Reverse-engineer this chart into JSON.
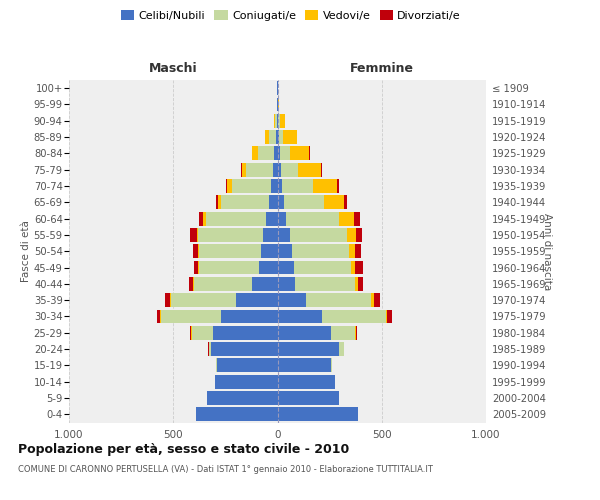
{
  "age_groups": [
    "0-4",
    "5-9",
    "10-14",
    "15-19",
    "20-24",
    "25-29",
    "30-34",
    "35-39",
    "40-44",
    "45-49",
    "50-54",
    "55-59",
    "60-64",
    "65-69",
    "70-74",
    "75-79",
    "80-84",
    "85-89",
    "90-94",
    "95-99",
    "100+"
  ],
  "birth_years": [
    "2005-2009",
    "2000-2004",
    "1995-1999",
    "1990-1994",
    "1985-1989",
    "1980-1984",
    "1975-1979",
    "1970-1974",
    "1965-1969",
    "1960-1964",
    "1955-1959",
    "1950-1954",
    "1945-1949",
    "1940-1944",
    "1935-1939",
    "1930-1934",
    "1925-1929",
    "1920-1924",
    "1915-1919",
    "1910-1914",
    "≤ 1909"
  ],
  "males": {
    "celibi": [
      390,
      340,
      300,
      290,
      320,
      310,
      270,
      200,
      120,
      90,
      80,
      70,
      55,
      40,
      30,
      20,
      15,
      5,
      2,
      1,
      1
    ],
    "coniugati": [
      0,
      0,
      2,
      5,
      10,
      100,
      290,
      310,
      280,
      285,
      295,
      310,
      290,
      230,
      190,
      130,
      80,
      35,
      10,
      3,
      2
    ],
    "vedovi": [
      0,
      0,
      0,
      0,
      0,
      5,
      5,
      5,
      5,
      5,
      6,
      8,
      10,
      15,
      20,
      20,
      25,
      20,
      5,
      0,
      0
    ],
    "divorziati": [
      0,
      0,
      0,
      0,
      2,
      5,
      15,
      25,
      20,
      20,
      25,
      30,
      20,
      10,
      8,
      5,
      3,
      2,
      0,
      0,
      0
    ]
  },
  "females": {
    "nubili": [
      385,
      295,
      275,
      255,
      295,
      255,
      215,
      135,
      82,
      78,
      68,
      58,
      42,
      30,
      20,
      15,
      10,
      5,
      2,
      1,
      0
    ],
    "coniugate": [
      0,
      0,
      2,
      5,
      22,
      115,
      305,
      315,
      290,
      275,
      275,
      275,
      255,
      195,
      150,
      85,
      48,
      22,
      10,
      3,
      2
    ],
    "vedove": [
      0,
      0,
      0,
      0,
      0,
      5,
      5,
      12,
      12,
      17,
      27,
      42,
      72,
      92,
      115,
      110,
      95,
      65,
      22,
      5,
      2
    ],
    "divorziate": [
      0,
      0,
      0,
      0,
      2,
      5,
      22,
      28,
      28,
      38,
      32,
      32,
      28,
      15,
      10,
      5,
      5,
      2,
      0,
      0,
      0
    ]
  },
  "colors": {
    "celibi": "#4472c4",
    "coniugati": "#c5d9a0",
    "vedovi": "#ffc000",
    "divorziati": "#c0000b"
  },
  "legend_labels": [
    "Celibi/Nubili",
    "Coniugati/e",
    "Vedovi/e",
    "Divorziati/e"
  ],
  "title_main": "Popolazione per età, sesso e stato civile - 2010",
  "title_sub": "COMUNE DI CARONNO PERTUSELLA (VA) - Dati ISTAT 1° gennaio 2010 - Elaborazione TUTTITALIA.IT",
  "label_maschi": "Maschi",
  "label_femmine": "Femmine",
  "ylabel_left": "Fasce di età",
  "ylabel_right": "Anni di nascita",
  "xlim": 1000,
  "bg_color": "#efefef",
  "grid_color": "#cccccc"
}
